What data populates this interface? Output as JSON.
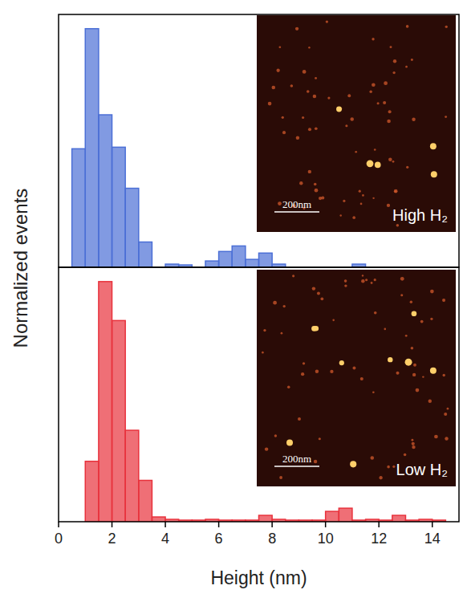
{
  "chart_data": [
    {
      "type": "histogram",
      "color": "#4b6fd6",
      "bins": [
        0.5,
        1,
        1.5,
        2,
        2.5,
        3,
        3.5,
        4,
        4.5,
        5,
        5.5,
        6,
        6.5,
        7,
        7.5,
        8,
        8.5,
        9,
        9.5,
        10,
        10.5,
        11,
        11.5,
        12,
        12.5,
        13,
        13.5,
        14,
        14.5,
        15
      ],
      "values": [
        150,
        302,
        193,
        152,
        100,
        32,
        0,
        4,
        3,
        0,
        8,
        20,
        27,
        10,
        18,
        4,
        0,
        0,
        0,
        0,
        0,
        4,
        0,
        0,
        0,
        0,
        0,
        0,
        0
      ],
      "xlim": [
        0,
        15
      ],
      "ylim": [
        0,
        320
      ],
      "tick_labels": false,
      "annotations": [
        "200nm",
        "High H₂"
      ]
    },
    {
      "type": "histogram",
      "color": "#e8323c",
      "bins": [
        0.5,
        1,
        1.5,
        2,
        2.5,
        3,
        3.5,
        4,
        4.5,
        5,
        5.5,
        6,
        6.5,
        7,
        7.5,
        8,
        8.5,
        9,
        9.5,
        10,
        10.5,
        11,
        11.5,
        12,
        12.5,
        13,
        13.5,
        14,
        14.5,
        15
      ],
      "values": [
        0,
        76,
        302,
        253,
        115,
        52,
        6,
        3,
        2,
        2,
        3,
        2,
        2,
        2,
        8,
        3,
        2,
        2,
        2,
        13,
        17,
        2,
        3,
        2,
        8,
        2,
        3,
        2,
        0
      ],
      "xlim": [
        0,
        15
      ],
      "ylim": [
        0,
        320
      ],
      "xticks": [
        0,
        2,
        4,
        6,
        8,
        10,
        12,
        14
      ],
      "tick_labels": "x",
      "x_label": "Height (nm)",
      "y_label": "Normalized events",
      "annotations": [
        "200nm",
        "Low H₂"
      ]
    }
  ]
}
